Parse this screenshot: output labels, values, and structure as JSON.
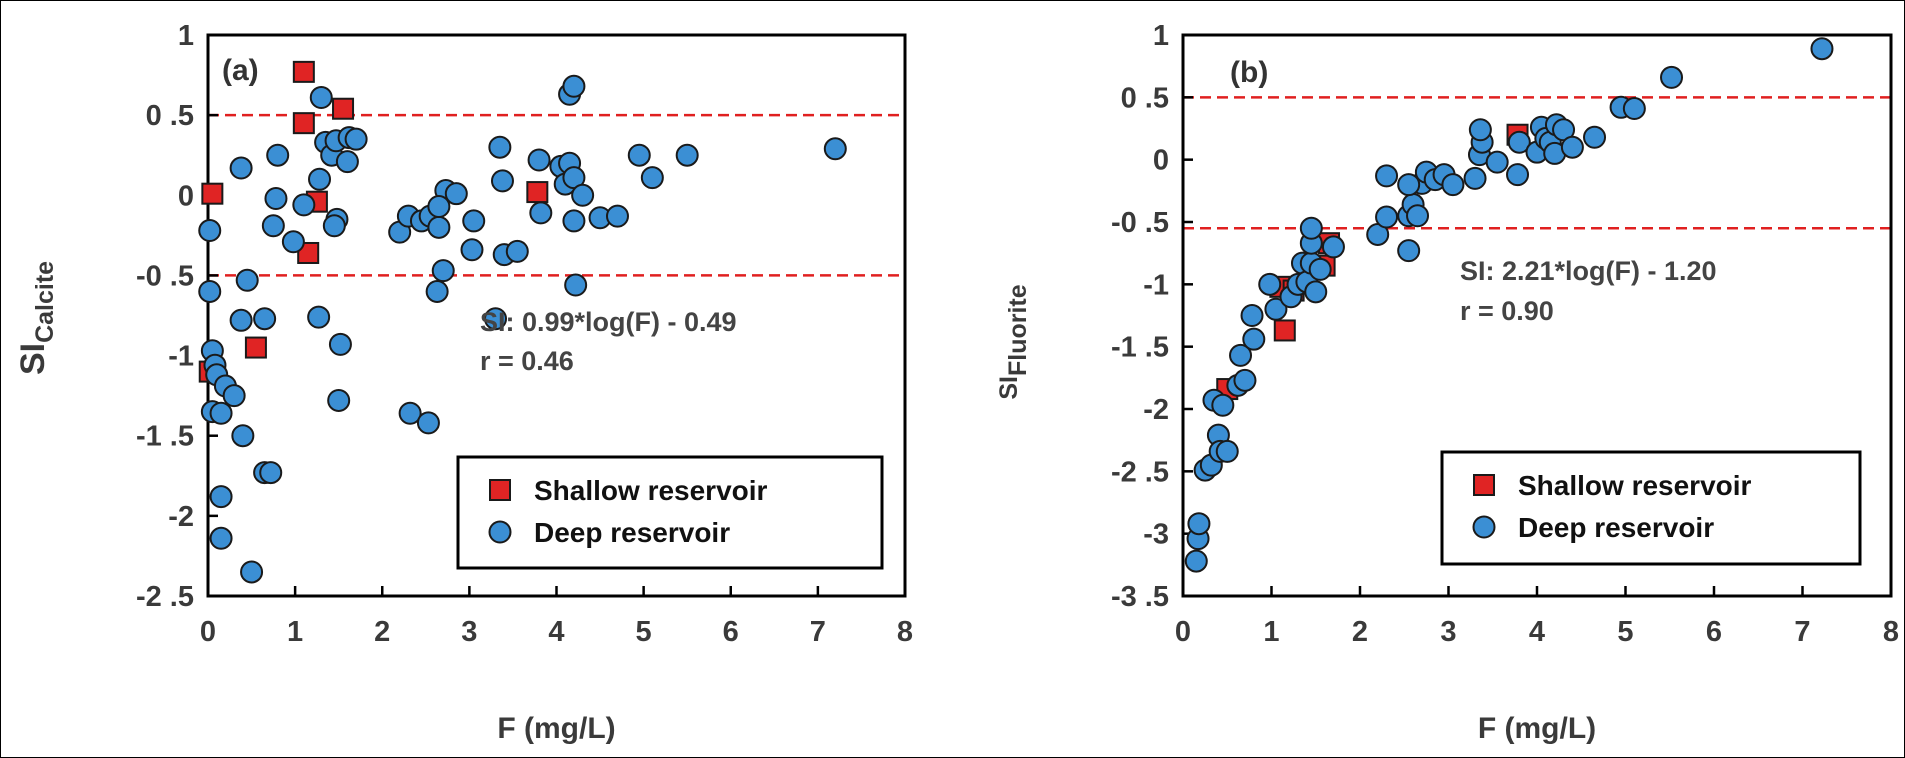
{
  "colors": {
    "shallow_fill": "#e02424",
    "deep_fill": "#3b8fd4",
    "marker_stroke": "#1a1a1a",
    "ref_line": "#e02020",
    "axis": "#000000",
    "text": "#3a3a3a"
  },
  "chart_data": [
    {
      "type": "scatter",
      "panel_label": "(a)",
      "xlabel": "F (mg/L)",
      "ylabel_main": "SI",
      "ylabel_sub": "Calcite",
      "xlim": [
        0,
        8
      ],
      "ylim": [
        -2.5,
        1
      ],
      "xticks": [
        0,
        1,
        2,
        3,
        4,
        5,
        6,
        7,
        8
      ],
      "yticks": [
        1,
        0.5,
        0,
        -0.5,
        -1,
        -1.5,
        -2,
        -2.5
      ],
      "ytick_labels": [
        "1",
        "0 .5",
        "0",
        "-0 .5",
        "-1",
        "-1 .5",
        "-2",
        "-2 .5"
      ],
      "ref_lines": [
        0.5,
        -0.5
      ],
      "equation": "SI: 0.99*log(F) - 0.49",
      "r_text": "r = 0.46",
      "legend": {
        "position": "bottom-right",
        "items": [
          "Shallow reservoir",
          "Deep reservoir"
        ]
      },
      "series": [
        {
          "name": "Shallow reservoir",
          "marker": "square",
          "points": [
            [
              1.1,
              0.77
            ],
            [
              1.1,
              0.45
            ],
            [
              1.55,
              0.54
            ],
            [
              1.25,
              -0.04
            ],
            [
              1.15,
              -0.36
            ],
            [
              0.55,
              -0.95
            ],
            [
              0.05,
              0.01
            ],
            [
              0.02,
              -1.1
            ],
            [
              3.78,
              0.02
            ]
          ]
        },
        {
          "name": "Deep reservoir",
          "marker": "circle",
          "points": [
            [
              0.02,
              -0.22
            ],
            [
              0.02,
              -0.6
            ],
            [
              0.05,
              -0.97
            ],
            [
              0.08,
              -1.06
            ],
            [
              0.1,
              -1.12
            ],
            [
              0.05,
              -1.35
            ],
            [
              0.15,
              -1.36
            ],
            [
              0.2,
              -1.19
            ],
            [
              0.3,
              -1.25
            ],
            [
              0.15,
              -1.88
            ],
            [
              0.15,
              -2.14
            ],
            [
              0.4,
              -1.5
            ],
            [
              0.5,
              -2.35
            ],
            [
              0.65,
              -1.73
            ],
            [
              0.72,
              -1.73
            ],
            [
              0.65,
              -0.77
            ],
            [
              0.38,
              -0.78
            ],
            [
              0.45,
              -0.53
            ],
            [
              0.38,
              0.17
            ],
            [
              0.8,
              0.25
            ],
            [
              0.78,
              -0.02
            ],
            [
              0.75,
              -0.19
            ],
            [
              0.98,
              -0.29
            ],
            [
              1.1,
              -0.06
            ],
            [
              1.3,
              0.61
            ],
            [
              1.35,
              0.33
            ],
            [
              1.42,
              0.25
            ],
            [
              1.47,
              0.34
            ],
            [
              1.62,
              0.36
            ],
            [
              1.7,
              0.35
            ],
            [
              1.6,
              0.21
            ],
            [
              1.28,
              0.1
            ],
            [
              1.48,
              -0.15
            ],
            [
              1.45,
              -0.19
            ],
            [
              1.27,
              -0.76
            ],
            [
              1.52,
              -0.93
            ],
            [
              1.5,
              -1.28
            ],
            [
              2.2,
              -0.23
            ],
            [
              2.3,
              -0.13
            ],
            [
              2.45,
              -0.16
            ],
            [
              2.55,
              -0.13
            ],
            [
              2.65,
              -0.2
            ],
            [
              2.7,
              -0.47
            ],
            [
              2.63,
              -0.6
            ],
            [
              2.73,
              0.03
            ],
            [
              2.85,
              0.01
            ],
            [
              2.65,
              -0.07
            ],
            [
              3.05,
              -0.16
            ],
            [
              3.03,
              -0.34
            ],
            [
              3.3,
              -0.77
            ],
            [
              3.35,
              0.3
            ],
            [
              3.38,
              0.09
            ],
            [
              3.4,
              -0.37
            ],
            [
              3.55,
              -0.35
            ],
            [
              3.8,
              0.22
            ],
            [
              3.82,
              -0.11
            ],
            [
              4.05,
              0.18
            ],
            [
              4.15,
              0.2
            ],
            [
              4.1,
              0.07
            ],
            [
              4.2,
              0.11
            ],
            [
              4.2,
              -0.16
            ],
            [
              4.22,
              -0.56
            ],
            [
              4.15,
              0.63
            ],
            [
              4.2,
              0.68
            ],
            [
              4.3,
              0.0
            ],
            [
              4.5,
              -0.14
            ],
            [
              4.7,
              -0.13
            ],
            [
              4.95,
              0.25
            ],
            [
              5.1,
              0.11
            ],
            [
              5.5,
              0.25
            ],
            [
              7.2,
              0.29
            ],
            [
              2.32,
              -1.36
            ],
            [
              2.53,
              -1.42
            ]
          ]
        }
      ]
    },
    {
      "type": "scatter",
      "panel_label": "(b)",
      "xlabel": "F (mg/L)",
      "ylabel_main": "SI",
      "ylabel_sub": "Fluorite",
      "xlim": [
        0,
        8
      ],
      "ylim": [
        -3.5,
        1
      ],
      "xticks": [
        0,
        1,
        2,
        3,
        4,
        5,
        6,
        7,
        8
      ],
      "yticks": [
        1,
        0.5,
        0,
        -0.5,
        -1,
        -1.5,
        -2,
        -2.5,
        -3,
        -3.5
      ],
      "ytick_labels": [
        "1",
        "0 .5",
        "0",
        "-0 .5",
        "-1",
        "-1 .5",
        "-2",
        "-2 .5",
        "-3",
        "-3 .5"
      ],
      "ref_lines": [
        0.5,
        -0.55
      ],
      "equation": "SI: 2.21*log(F) - 1.20",
      "r_text": "r = 0.90",
      "legend": {
        "position": "bottom-right",
        "items": [
          "Shallow reservoir",
          "Deep reservoir"
        ]
      },
      "series": [
        {
          "name": "Shallow reservoir",
          "marker": "square",
          "points": [
            [
              0.5,
              -1.84
            ],
            [
              1.1,
              -1.02
            ],
            [
              1.15,
              -1.37
            ],
            [
              1.25,
              -1.05
            ],
            [
              1.6,
              -0.85
            ],
            [
              1.65,
              -0.67
            ],
            [
              3.78,
              0.2
            ]
          ]
        },
        {
          "name": "Deep reservoir",
          "marker": "circle",
          "points": [
            [
              0.15,
              -3.22
            ],
            [
              0.17,
              -3.04
            ],
            [
              0.18,
              -2.92
            ],
            [
              0.25,
              -2.49
            ],
            [
              0.32,
              -2.45
            ],
            [
              0.4,
              -2.21
            ],
            [
              0.42,
              -2.34
            ],
            [
              0.5,
              -2.34
            ],
            [
              0.35,
              -1.93
            ],
            [
              0.45,
              -1.97
            ],
            [
              0.62,
              -1.81
            ],
            [
              0.7,
              -1.77
            ],
            [
              0.65,
              -1.57
            ],
            [
              0.8,
              -1.44
            ],
            [
              0.78,
              -1.25
            ],
            [
              0.98,
              -1.0
            ],
            [
              1.05,
              -1.2
            ],
            [
              1.22,
              -1.1
            ],
            [
              1.3,
              -1.0
            ],
            [
              1.35,
              -0.83
            ],
            [
              1.4,
              -0.98
            ],
            [
              1.45,
              -0.83
            ],
            [
              1.55,
              -0.88
            ],
            [
              1.5,
              -1.06
            ],
            [
              1.45,
              -0.67
            ],
            [
              1.45,
              -0.55
            ],
            [
              1.7,
              -0.7
            ],
            [
              2.2,
              -0.6
            ],
            [
              2.3,
              -0.46
            ],
            [
              2.55,
              -0.45
            ],
            [
              2.55,
              -0.73
            ],
            [
              2.6,
              -0.36
            ],
            [
              2.65,
              -0.45
            ],
            [
              2.7,
              -0.19
            ],
            [
              2.75,
              -0.1
            ],
            [
              2.3,
              -0.13
            ],
            [
              2.55,
              -0.2
            ],
            [
              2.85,
              -0.16
            ],
            [
              2.95,
              -0.12
            ],
            [
              3.05,
              -0.2
            ],
            [
              3.3,
              -0.15
            ],
            [
              3.35,
              0.04
            ],
            [
              3.38,
              0.14
            ],
            [
              3.36,
              0.24
            ],
            [
              3.55,
              -0.02
            ],
            [
              3.8,
              0.14
            ],
            [
              3.78,
              -0.12
            ],
            [
              4.0,
              0.06
            ],
            [
              4.05,
              0.26
            ],
            [
              4.1,
              0.17
            ],
            [
              4.15,
              0.14
            ],
            [
              4.22,
              0.28
            ],
            [
              4.2,
              0.05
            ],
            [
              4.3,
              0.24
            ],
            [
              4.4,
              0.1
            ],
            [
              4.65,
              0.18
            ],
            [
              4.95,
              0.42
            ],
            [
              5.1,
              0.41
            ],
            [
              5.52,
              0.66
            ],
            [
              7.22,
              0.89
            ]
          ]
        }
      ]
    }
  ]
}
